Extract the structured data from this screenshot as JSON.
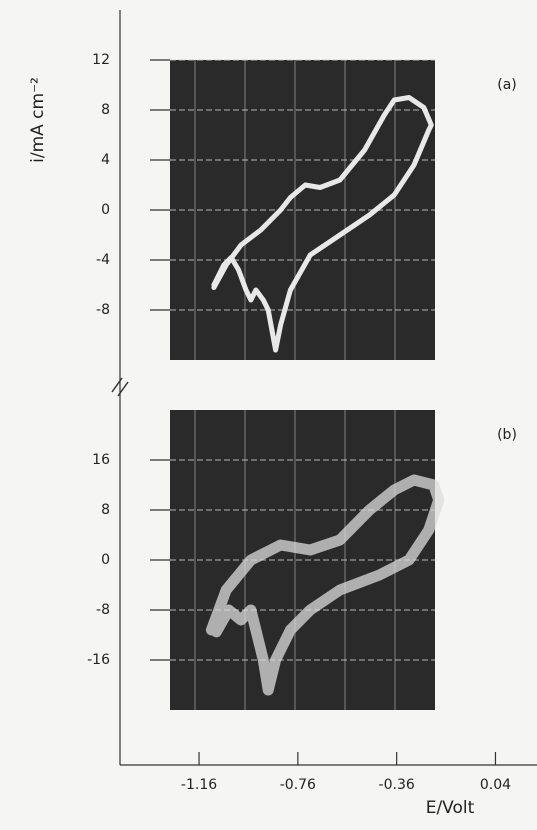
{
  "chart_data": [
    {
      "type": "line",
      "panel_label": "(a)",
      "y_label": "i/mA cm⁻²",
      "xlim": [
        -1.48,
        0.2
      ],
      "ylim": [
        -12,
        12
      ],
      "yticks": [
        12,
        8,
        4,
        0,
        -4,
        -8
      ],
      "color": "#f2f2f2",
      "x": [
        -1.1,
        -1.05,
        -0.99,
        -0.91,
        -0.83,
        -0.79,
        -0.73,
        -0.67,
        -0.59,
        -0.49,
        -0.41,
        -0.37,
        -0.31,
        -0.25,
        -0.22,
        -0.23,
        -0.29,
        -0.37,
        -0.47,
        -0.59,
        -0.71,
        -0.79,
        -0.83,
        -0.85,
        -0.88,
        -0.9,
        -0.93,
        -0.95,
        -0.97,
        -1.0,
        -1.03,
        -1.06,
        -1.1
      ],
      "values": [
        -6.2,
        -4.4,
        -2.8,
        -1.6,
        0,
        1,
        2,
        1.8,
        2.4,
        4.8,
        7.6,
        8.8,
        9,
        8.2,
        6.8,
        6.4,
        3.6,
        1.2,
        -0.4,
        -2,
        -3.6,
        -6.4,
        -9.2,
        -11.2,
        -8,
        -7.2,
        -6.4,
        -7.2,
        -6.4,
        -4.8,
        -3.8,
        -4.4,
        -6
      ]
    },
    {
      "type": "line",
      "panel_label": "(b)",
      "x_label": "E/Volt",
      "xlim": [
        -1.48,
        0.2
      ],
      "xticks": [
        -1.16,
        -0.76,
        -0.36,
        0.04
      ],
      "ylim": [
        -24,
        24
      ],
      "yticks": [
        16,
        8,
        0,
        -8,
        -16
      ],
      "color": "#dcdcdc",
      "x": [
        -1.11,
        -1.05,
        -0.95,
        -0.83,
        -0.71,
        -0.59,
        -0.47,
        -0.37,
        -0.29,
        -0.21,
        -0.19,
        -0.23,
        -0.31,
        -0.43,
        -0.59,
        -0.71,
        -0.79,
        -0.85,
        -0.88,
        -0.9,
        -0.93,
        -0.95,
        -0.99,
        -1.04,
        -1.09
      ],
      "values": [
        -11.2,
        -4.8,
        0,
        2.4,
        1.6,
        3.2,
        8,
        11.2,
        12.8,
        12,
        9.6,
        4.8,
        0,
        -2.4,
        -4.8,
        -8,
        -11.2,
        -16,
        -20.8,
        -16,
        -11.2,
        -8,
        -9.6,
        -8,
        -11.5
      ]
    }
  ]
}
